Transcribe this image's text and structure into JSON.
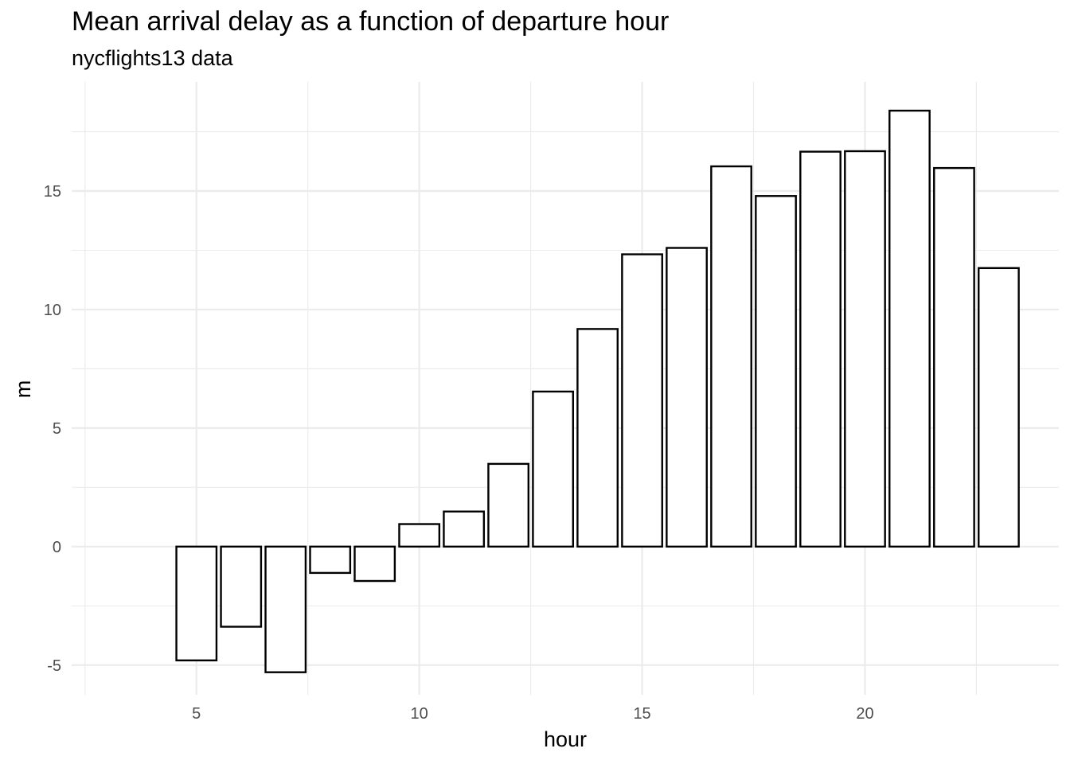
{
  "chart_data": {
    "type": "bar",
    "title": "Mean arrival delay as a function of departure hour",
    "subtitle": "nycflights13 data",
    "xlabel": "hour",
    "ylabel": "m",
    "x": [
      5,
      6,
      7,
      8,
      9,
      10,
      11,
      12,
      13,
      14,
      15,
      16,
      17,
      18,
      19,
      20,
      21,
      22,
      23
    ],
    "values": [
      -4.8,
      -3.38,
      -5.3,
      -1.11,
      -1.45,
      0.95,
      1.48,
      3.49,
      6.54,
      9.18,
      12.33,
      12.6,
      16.04,
      14.79,
      16.66,
      16.68,
      18.39,
      15.97,
      11.75
    ],
    "xlim": [
      2.2,
      24.35
    ],
    "ylim": [
      -6.25,
      19.6
    ],
    "x_ticks": [
      "5",
      "10",
      "15",
      "20"
    ],
    "y_ticks": [
      "-5",
      "0",
      "5",
      "10",
      "15"
    ],
    "bar_fill": "#ffffff",
    "bar_outline": "#000000",
    "grid": true,
    "grid_color": "#ebebeb",
    "legend": "none"
  }
}
